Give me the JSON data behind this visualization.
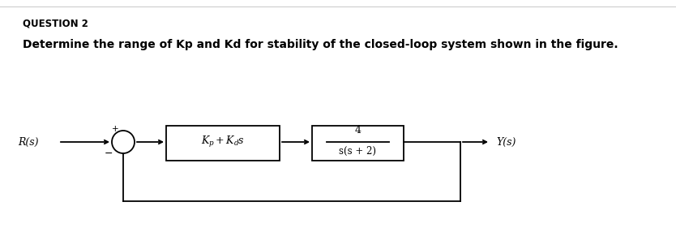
{
  "title": "QUESTION 2",
  "question_text": "Determine the range of Kp and Kd for stability of the closed-loop system shown in the figure.",
  "background_color": "#ffffff",
  "text_color": "#000000",
  "block1_label": "$K_p + K_d s$",
  "block2_num": "4",
  "block2_den": "s(s + 2)",
  "input_label": "R(s)",
  "output_label": "Y(s)",
  "plus_sign": "+",
  "minus_sign": "−",
  "title_fontsize": 8.5,
  "question_fontsize": 10,
  "diagram_fontsize": 9
}
